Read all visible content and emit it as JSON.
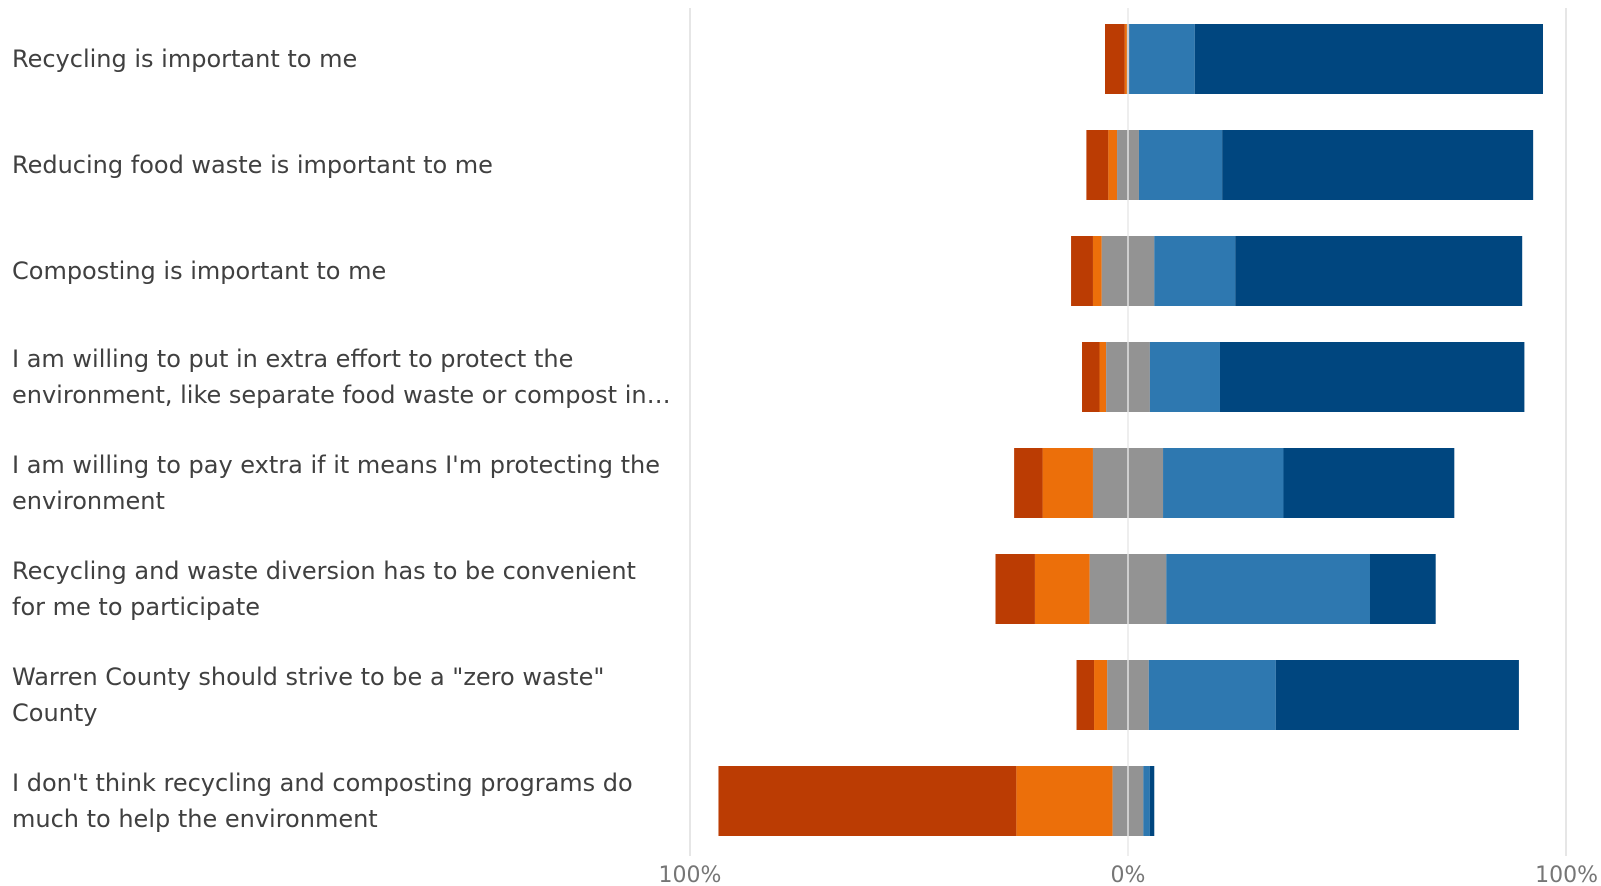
{
  "chart_data": {
    "type": "bar",
    "orientation": "horizontal",
    "stacking": "diverging",
    "categories": [
      "Recycling is important to me",
      "Reducing food waste is important to me",
      "Composting is important to me",
      "I am willing to put in extra effort to protect the environment, like separate food waste or compost in…",
      "I am willing to pay extra if it means I'm protecting the environment",
      "Recycling and waste diversion has to be convenient for me to participate",
      "Warren County should strive to be a \"zero waste\" County",
      "I don't think recycling and composting programs do much to help the environment"
    ],
    "category_lines": [
      [
        "Recycling is important to me"
      ],
      [
        "Reducing food waste is important to me"
      ],
      [
        "Composting is important to me"
      ],
      [
        "I am willing to put in extra effort to protect the",
        "environment, like separate food waste or compost in…"
      ],
      [
        "I am willing to pay extra if it means I'm protecting the",
        "environment"
      ],
      [
        "Recycling and waste diversion has to be convenient",
        "for me to participate"
      ],
      [
        "Warren County should strive to be a \"zero waste\"",
        "County"
      ],
      [
        "I don't think recycling and composting programs do",
        "much to help the environment"
      ]
    ],
    "series": [
      {
        "color": "#BB3C03",
        "side": "negative",
        "values": [
          4.5,
          5.0,
          5.0,
          4.0,
          6.5,
          9.0,
          4.0,
          68.0
        ]
      },
      {
        "color": "#EC6F0A",
        "side": "negative",
        "values": [
          0.5,
          2.0,
          2.0,
          1.5,
          11.5,
          12.5,
          3.0,
          22.0
        ]
      },
      {
        "color": "#939393",
        "side": "neutral",
        "values": [
          0.5,
          5.0,
          12.0,
          10.0,
          16.0,
          17.5,
          9.5,
          7.0
        ]
      },
      {
        "color": "#2E78B0",
        "side": "positive",
        "values": [
          15.0,
          19.0,
          18.5,
          16.0,
          27.5,
          46.5,
          29.0,
          1.5
        ]
      },
      {
        "color": "#00467F",
        "side": "positive",
        "values": [
          79.5,
          71.0,
          65.5,
          69.5,
          39.0,
          15.0,
          55.5,
          1.0
        ]
      }
    ],
    "xlim": [
      -100,
      100
    ],
    "x_ticks": [
      -100,
      0,
      100
    ],
    "x_tick_labels": [
      "100%",
      "0%",
      "100%"
    ],
    "gridlines": true,
    "legend": "none"
  }
}
